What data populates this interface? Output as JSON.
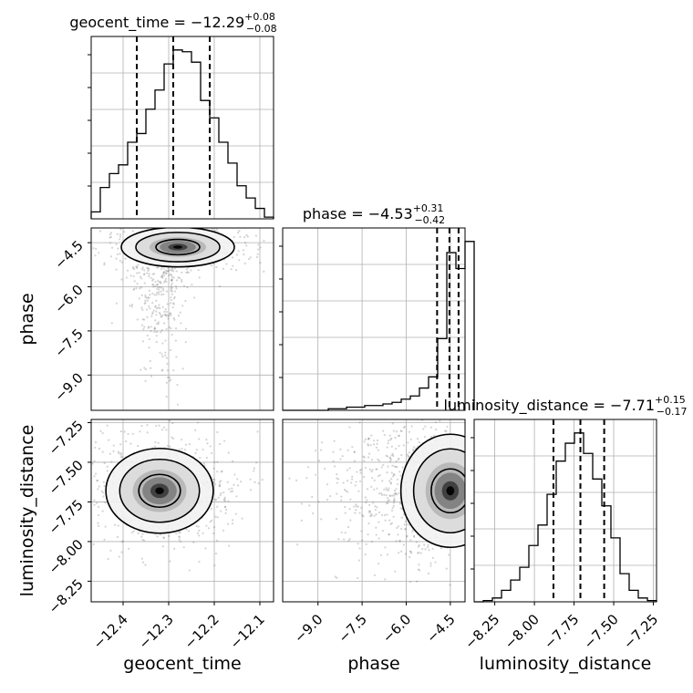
{
  "chart_data": {
    "type": "corner",
    "grid": true,
    "parameters": [
      "geocent_time",
      "phase",
      "luminosity_distance"
    ],
    "titles": [
      {
        "param": "geocent_time",
        "text": "geocent_time = −12.29",
        "plus": "+0.08",
        "minus": "−0.08"
      },
      {
        "param": "phase",
        "text": "phase = −4.53",
        "plus": "+0.31",
        "minus": "−0.42"
      },
      {
        "param": "luminosity_distance",
        "text": "luminosity_distance = −7.71",
        "plus": "+0.15",
        "minus": "−0.17"
      }
    ],
    "axis_ranges": {
      "geocent_time": [
        -12.47,
        -12.07
      ],
      "phase": [
        -10.2,
        -4.0
      ],
      "luminosity_distance": [
        -8.38,
        -7.23
      ]
    },
    "ticks": {
      "geocent_time": {
        "values": [
          -12.4,
          -12.3,
          -12.2,
          -12.1
        ],
        "labels": [
          "−12.4",
          "−12.3",
          "−12.2",
          "−12.1"
        ]
      },
      "phase": {
        "values": [
          -9.0,
          -7.5,
          -6.0,
          -4.5
        ],
        "labels": [
          "−9.0",
          "−7.5",
          "−6.0",
          "−4.5"
        ]
      },
      "luminosity_distance": {
        "values": [
          -8.25,
          -8.0,
          -7.75,
          -7.5,
          -7.25
        ],
        "labels": [
          "−8.25",
          "−8.00",
          "−7.75",
          "−7.50",
          "−7.25"
        ]
      }
    },
    "quantile_lines": {
      "geocent_time": [
        -12.37,
        -12.29,
        -12.21
      ],
      "phase": [
        -4.95,
        -4.53,
        -4.22
      ],
      "luminosity_distance": [
        -7.88,
        -7.71,
        -7.56
      ]
    },
    "histograms": {
      "geocent_time": {
        "edges_start": -12.47,
        "bin_width": 0.02,
        "counts": [
          8,
          36,
          52,
          62,
          88,
          98,
          126,
          148,
          178,
          194,
          192,
          180,
          136,
          116,
          88,
          64,
          38,
          24,
          12,
          2
        ]
      },
      "phase": {
        "edges_start": -10.2,
        "bin_width": 0.31,
        "counts": [
          0,
          0,
          0,
          0,
          0,
          1,
          1,
          2,
          2,
          3,
          3,
          4,
          5,
          7,
          9,
          14,
          21,
          45,
          99,
          89,
          106
        ]
      },
      "luminosity_distance": {
        "edges_start": -8.38,
        "bin_width": 0.0575,
        "counts": [
          0,
          1,
          3,
          9,
          17,
          27,
          44,
          60,
          84,
          110,
          124,
          132,
          116,
          96,
          75,
          50,
          22,
          9,
          3,
          1
        ]
      }
    },
    "contours_2d": [
      {
        "x": "geocent_time",
        "y": "phase",
        "levels": 3,
        "mode_x": -12.28,
        "mode_y": -4.65
      },
      {
        "x": "geocent_time",
        "y": "luminosity_distance",
        "levels": 3,
        "mode_x": -12.32,
        "mode_y": -7.68
      },
      {
        "x": "phase",
        "y": "luminosity_distance",
        "levels": 3,
        "mode_x": -4.5,
        "mode_y": -7.68
      }
    ],
    "xlabels": [
      "geocent_time",
      "phase",
      "luminosity_distance"
    ],
    "ylabels": [
      "",
      "phase",
      "luminosity_distance"
    ]
  }
}
